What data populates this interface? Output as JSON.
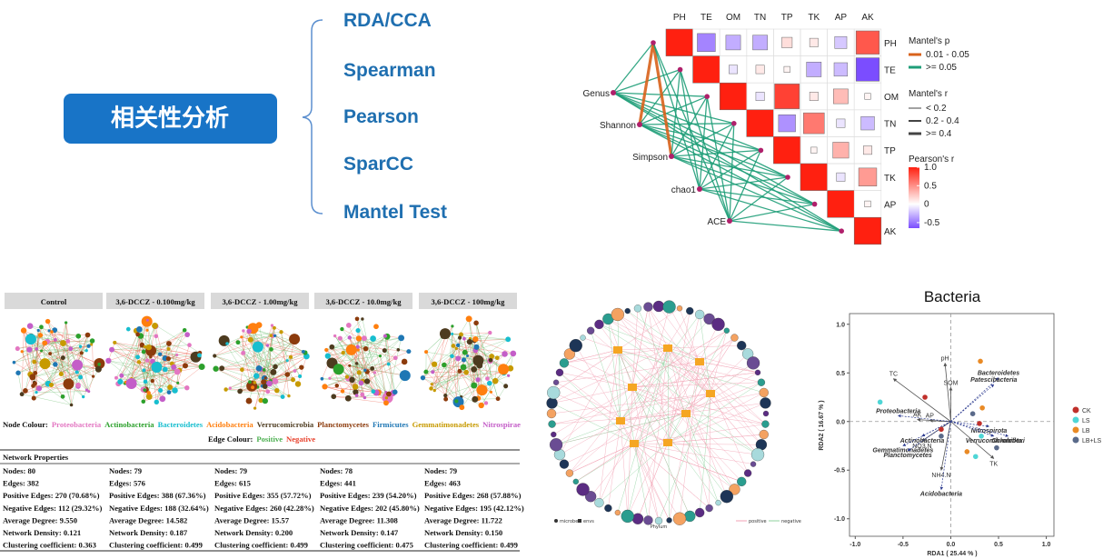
{
  "category_box": "相关性分析",
  "methods": [
    "RDA/CCA",
    "Spearman",
    "Pearson",
    "SparCC",
    "Mantel Test"
  ],
  "mantel": {
    "variables": [
      "PH",
      "TE",
      "OM",
      "TN",
      "TP",
      "TK",
      "AP",
      "AK"
    ],
    "indices": [
      "Genus",
      "Shannon",
      "Simpson",
      "chao1",
      "ACE"
    ],
    "pearson_r": [
      [
        1,
        -0.45,
        -0.3,
        -0.3,
        0.15,
        0.1,
        -0.2,
        0.75
      ],
      [
        1,
        -0.1,
        0.1,
        0.05,
        -0.3,
        -0.25,
        -0.75
      ],
      [
        1,
        -0.1,
        0.85,
        0.1,
        0.3,
        0.05
      ],
      [
        1,
        -0.4,
        0.6,
        -0.1,
        -0.25
      ],
      [
        1,
        0.05,
        0.35,
        0.1
      ],
      [
        1,
        -0.1,
        0.45
      ],
      [
        1,
        0.05
      ],
      [
        1
      ]
    ],
    "p_title": "Mantel's p",
    "p_labels": [
      "0.01 - 0.05",
      ">= 0.05"
    ],
    "p_colors": [
      "#d9621b",
      "#1f9e78"
    ],
    "r_title": "Mantel's r",
    "r_labels": [
      "< 0.2",
      "0.2 - 0.4",
      ">= 0.4"
    ],
    "colorbar_title": "Pearson's r",
    "colorbar_lim": [
      -0.65,
      1.0
    ],
    "colorbar_ticks": [
      {
        "value": 1.0,
        "label": "1.0"
      },
      0.5,
      0,
      -0.5
    ]
  },
  "networks": {
    "headers": [
      "Control",
      "3,6-DCCZ - 0.100mg/kg",
      "3,6-DCCZ - 1.00mg/kg",
      "3,6-DCCZ - 10.0mg/kg",
      "3,6-DCCZ - 100mg/kg"
    ],
    "node_label": "Node Colour:",
    "phyla": [
      {
        "name": "Proteobacteria",
        "color": "#e377c2"
      },
      {
        "name": "Actinobacteria",
        "color": "#2ca02c"
      },
      {
        "name": "Bacteroidetes",
        "color": "#17becf"
      },
      {
        "name": "Acidobacteria",
        "color": "#ff7f0e"
      },
      {
        "name": "Verrucomicrobia",
        "color": "#4d3b1f"
      },
      {
        "name": "Planctomycetes",
        "color": "#8c3b0c"
      },
      {
        "name": "Firmicutes",
        "color": "#1f77b4"
      },
      {
        "name": "Gemmatimonadetes",
        "color": "#c79a00"
      },
      {
        "name": "Nitrospirae",
        "color": "#c45ec8"
      }
    ],
    "edge_label": "Edge Colour:",
    "edges": [
      {
        "name": "Positive",
        "color": "#4caf50"
      },
      {
        "name": "Negative",
        "color": "#e8412c"
      }
    ],
    "table_title": "Network Properties",
    "table": [
      [
        "Nodes: 80",
        "Edges: 382",
        "Positive Edges: 270 (70.68%)",
        "Negative Edges: 112 (29.32%)",
        "Average Degree: 9.550",
        "Network Density: 0.121",
        "Clustering coefficient: 0.363"
      ],
      [
        "Nodes: 79",
        "Edges: 576",
        "Positive Edges: 388 (67.36%)",
        "Negative Edges: 188 (32.64%)",
        "Average Degree: 14.582",
        "Network Density: 0.187",
        "Clustering coefficient: 0.499"
      ],
      [
        "Nodes: 79",
        "Edges: 615",
        "Positive Edges: 355 (57.72%)",
        "Negative Edges: 260 (42.28%)",
        "Average Degree: 15.57",
        "Network Density: 0.200",
        "Clustering coefficient: 0.499"
      ],
      [
        "Nodes: 78",
        "Edges: 441",
        "Positive Edges: 239 (54.20%)",
        "Negative Edges: 202 (45.80%)",
        "Average Degree: 11.308",
        "Network Density: 0.147",
        "Clustering coefficient: 0.475"
      ],
      [
        "Nodes: 79",
        "Edges: 463",
        "Positive Edges: 268 (57.88%)",
        "Negative Edges: 195 (42.12%)",
        "Average Degree: 11.722",
        "Network Density: 0.150",
        "Clustering coefficient: 0.499"
      ]
    ]
  },
  "cooccurrence": {
    "node_types": [
      "microbes",
      "envs"
    ],
    "legend_title": "Phylum",
    "edge_types": [
      "positive",
      "negative"
    ]
  },
  "rda": {
    "type": "scatter",
    "title": "Bacteria",
    "x_label": "RDA1 ( 25.44 % )",
    "y_label": "RDA2 ( 16.67 % )",
    "xlim": [
      -1.06,
      1.08
    ],
    "ylim": [
      -1.18,
      1.11
    ],
    "xticks": [
      {
        "value": -1.0,
        "label": "-1.0"
      },
      -0.5,
      {
        "value": 0.0,
        "label": "0.0"
      },
      0.5,
      {
        "value": 1.0,
        "label": "1.0"
      }
    ],
    "yticks": [
      {
        "value": 1.0,
        "label": "1.0"
      },
      0.5,
      {
        "value": 0.0,
        "label": "0.0"
      },
      -0.5,
      {
        "value": -1.0,
        "label": "-1.0"
      }
    ],
    "series": [
      {
        "name": "CK",
        "color": "#c0302b",
        "x": [
          -0.27,
          -0.1,
          0.3
        ],
        "y": [
          0.25,
          -0.08,
          -0.02
        ]
      },
      {
        "name": "LS",
        "color": "#4fd6d6",
        "x": [
          -0.74,
          0.26,
          0.32
        ],
        "y": [
          0.2,
          -0.36,
          -0.15
        ]
      },
      {
        "name": "LB",
        "color": "#e98a25",
        "x": [
          0.31,
          0.17,
          0.33
        ],
        "y": [
          0.62,
          -0.31,
          0.14
        ]
      },
      {
        "name": "LB+LS",
        "color": "#5a6a8a",
        "x": [
          -0.1,
          0.23,
          0.48
        ],
        "y": [
          -0.15,
          0.08,
          -0.27
        ]
      }
    ],
    "env": [
      {
        "name": "TC",
        "x": -0.6,
        "y": 0.44
      },
      {
        "name": "pH",
        "x": -0.06,
        "y": 0.6
      },
      {
        "name": "SOM",
        "x": 0.0,
        "y": 0.35
      },
      {
        "name": "AK",
        "x": -0.35,
        "y": 0.02
      },
      {
        "name": "AP",
        "x": -0.22,
        "y": 0.01
      },
      {
        "name": "NO3.N",
        "x": -0.3,
        "y": -0.2
      },
      {
        "name": "NH4.N",
        "x": -0.1,
        "y": -0.5
      },
      {
        "name": "TK",
        "x": 0.45,
        "y": -0.38
      }
    ],
    "taxa": [
      {
        "name": "Bacteroidetes",
        "x": 0.5,
        "y": 0.45
      },
      {
        "name": "Patescibacteria",
        "x": 0.45,
        "y": 0.38
      },
      {
        "name": "Proteobacteria",
        "x": -0.55,
        "y": 0.06
      },
      {
        "name": "Actinobacteria",
        "x": -0.3,
        "y": -0.15
      },
      {
        "name": "Gemmatimonadetes",
        "x": -0.5,
        "y": -0.25
      },
      {
        "name": "Planctomycetes",
        "x": -0.45,
        "y": -0.3
      },
      {
        "name": "Nitrospirota",
        "x": 0.4,
        "y": -0.05
      },
      {
        "name": "Verrucomicrobiota",
        "x": 0.45,
        "y": -0.15
      },
      {
        "name": "Chloroflexi",
        "x": 0.6,
        "y": -0.15
      },
      {
        "name": "Acidobacteria",
        "x": -0.1,
        "y": -0.7
      }
    ]
  }
}
